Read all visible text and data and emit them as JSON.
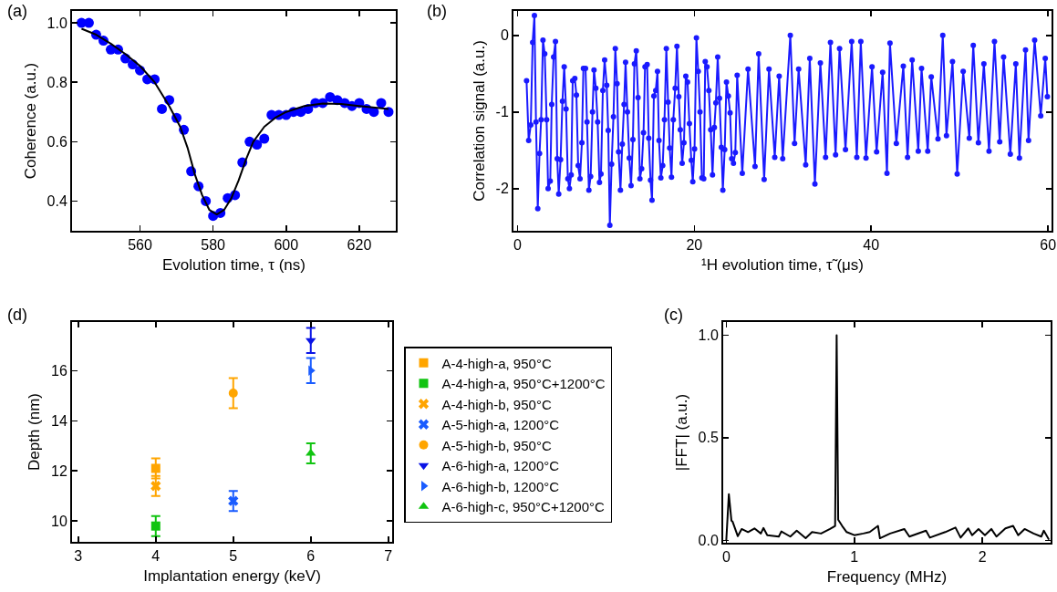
{
  "chart_data": [
    {
      "type": "scatter",
      "annotations": [
        "(a)"
      ],
      "xlabel": "Evolution time, τ (ns)",
      "ylabel": "Coherence (a.u.)",
      "xlim": [
        541.4,
        630
      ],
      "xticks": [
        560,
        580,
        600,
        620
      ],
      "ylim": [
        0.3,
        1.04
      ],
      "yticks": [
        {
          "value": 0.4,
          "label": "0.4"
        },
        {
          "value": 0.6,
          "label": "0.6"
        },
        {
          "value": 0.8,
          "label": "0.8"
        },
        {
          "value": 1.0,
          "label": "1.0"
        }
      ],
      "grid": false,
      "legend": false,
      "series": [
        {
          "marker": "circle",
          "color": "#0000ff",
          "x": [
            544,
            546,
            548,
            550,
            552,
            554,
            556,
            558,
            560,
            562,
            564,
            566,
            568,
            570,
            572,
            574,
            576,
            578,
            580,
            582,
            584,
            586,
            588,
            590,
            592,
            594,
            596,
            598,
            600,
            602,
            604,
            606,
            608,
            610,
            612,
            614,
            616,
            618,
            620,
            622,
            624,
            626,
            628
          ],
          "values": [
            1.0,
            1.0,
            0.96,
            0.94,
            0.91,
            0.91,
            0.88,
            0.86,
            0.84,
            0.81,
            0.81,
            0.71,
            0.74,
            0.68,
            0.64,
            0.5,
            0.45,
            0.4,
            0.35,
            0.36,
            0.41,
            0.42,
            0.53,
            0.6,
            0.59,
            0.61,
            0.69,
            0.69,
            0.69,
            0.7,
            0.7,
            0.71,
            0.73,
            0.73,
            0.75,
            0.74,
            0.73,
            0.72,
            0.73,
            0.71,
            0.7,
            0.73,
            0.7
          ]
        },
        {
          "type": "line",
          "marker": "none",
          "color": "#000000",
          "x": [
            544,
            548,
            552,
            556,
            560,
            564,
            568,
            571,
            573,
            575,
            577,
            579,
            581,
            583,
            585,
            587,
            589,
            591,
            594,
            597,
            600,
            605,
            610,
            615,
            620,
            625,
            628
          ],
          "values": [
            0.98,
            0.96,
            0.93,
            0.895,
            0.855,
            0.8,
            0.72,
            0.65,
            0.58,
            0.49,
            0.42,
            0.37,
            0.355,
            0.37,
            0.41,
            0.47,
            0.54,
            0.6,
            0.65,
            0.68,
            0.7,
            0.72,
            0.728,
            0.727,
            0.72,
            0.714,
            0.71
          ]
        }
      ]
    },
    {
      "type": "line",
      "annotations": [
        "(b)"
      ],
      "xlabel": "¹H evolution time, τ̃ (μs)",
      "ylabel": "Correlation signal (a.u.)",
      "xlim": [
        -0.45,
        60.4
      ],
      "xticks": [
        0,
        20,
        40,
        60
      ],
      "ylim": [
        -2.55,
        0.32
      ],
      "yticks": [
        -2,
        -1,
        0
      ],
      "grid": false,
      "legend": false,
      "marker": "circle",
      "line_style": "solid",
      "series": [
        {
          "color": "#1a1aff",
          "x": [
            1.03,
            1.27,
            1.51,
            1.72,
            1.92,
            2.1,
            2.3,
            2.5,
            2.68,
            2.89,
            3.09,
            3.3,
            3.47,
            3.71,
            3.88,
            4.09,
            4.3,
            4.5,
            4.67,
            4.88,
            5.09,
            5.29,
            5.5,
            5.7,
            5.88,
            6.08,
            6.25,
            6.49,
            6.67,
            6.87,
            7.08,
            7.29,
            7.46,
            7.7,
            7.87,
            8.08,
            8.28,
            8.49,
            8.66,
            8.87,
            9.07,
            9.28,
            9.45,
            9.66,
            9.86,
            10.1,
            10.27,
            10.45,
            10.65,
            10.86,
            11.07,
            11.27,
            11.44,
            11.65,
            11.86,
            12.06,
            12.23,
            12.44,
            12.65,
            12.85,
            13.06,
            13.23,
            13.44,
            13.64,
            13.85,
            14.05,
            14.26,
            14.43,
            14.67,
            14.85,
            15.05,
            15.22,
            15.43,
            15.64,
            15.84,
            16.01,
            16.22,
            16.43,
            16.63,
            16.84,
            17.04,
            17.22,
            17.42,
            17.63,
            17.84,
            18.04,
            18.25,
            18.42,
            18.63,
            18.83,
            19.04,
            19.24,
            19.45,
            19.66,
            19.83,
            20.03,
            20.24,
            20.45,
            20.65,
            20.86,
            21.07,
            21.24,
            21.44,
            21.65,
            21.86,
            22.06,
            22.27,
            22.44,
            22.65,
            22.85,
            23.06,
            23.23,
            23.44,
            23.64,
            23.85,
            24.05,
            24.23,
            24.43,
            24.64,
            24.85,
            25.43,
            26.08,
            26.87,
            27.28,
            27.9,
            28.45,
            29.1,
            29.6,
            30.0,
            30.86,
            31.34,
            31.8,
            32.6,
            33.06,
            33.64,
            34.26,
            34.85,
            35.4,
            35.98,
            36.43,
            37.1,
            37.8,
            38.38,
            38.83,
            39.42,
            40.1,
            40.62,
            41.3,
            41.79,
            42.13,
            42.85,
            43.64,
            44.12,
            44.64,
            45.33,
            45.7,
            46.4,
            46.8,
            47.56,
            48.1,
            48.52,
            49.2,
            49.73,
            50.41,
            51.1,
            51.55,
            52.13,
            52.75,
            53.33,
            53.95,
            54.54,
            54.98,
            55.74,
            56.36,
            56.77,
            57.46,
            57.8,
            58.49,
            59.18,
            59.69,
            59.93
          ],
          "values": [
            -0.59,
            -1.37,
            -1.17,
            -0.09,
            0.26,
            -1.13,
            -2.26,
            -1.54,
            -1.1,
            -0.06,
            -0.24,
            -1.1,
            -2.0,
            -1.9,
            -0.9,
            -0.28,
            -0.08,
            -1.61,
            -2.07,
            -1.62,
            -0.86,
            -0.41,
            -0.96,
            -1.87,
            -2.0,
            -1.82,
            -0.59,
            -0.56,
            -0.78,
            -1.7,
            -1.87,
            -1.4,
            -0.43,
            -0.43,
            -1.13,
            -2.02,
            -1.84,
            -1.0,
            -0.45,
            -0.69,
            -1.13,
            -1.92,
            -1.81,
            -0.72,
            -0.32,
            -0.65,
            -1.24,
            -2.48,
            -1.68,
            -1.06,
            -0.17,
            -0.63,
            -1.52,
            -2.02,
            -1.42,
            -0.9,
            -0.35,
            -1.0,
            -1.6,
            -1.96,
            -1.36,
            -0.37,
            -0.2,
            -0.81,
            -1.87,
            -1.74,
            -1.27,
            -0.41,
            -0.38,
            -1.34,
            -1.89,
            -2.15,
            -0.79,
            -0.72,
            -0.47,
            -1.37,
            -1.86,
            -1.7,
            -1.1,
            -0.17,
            -0.87,
            -1.47,
            -1.85,
            -1.1,
            -0.69,
            -0.14,
            -0.8,
            -1.23,
            -1.67,
            -1.4,
            -0.53,
            -0.61,
            -1.15,
            -1.63,
            -1.91,
            -1.48,
            -0.03,
            -0.47,
            -1.0,
            -1.86,
            -1.87,
            -0.34,
            -0.41,
            -0.72,
            -1.23,
            -1.82,
            -1.2,
            -0.88,
            -0.28,
            -0.82,
            -1.46,
            -2.02,
            -1.49,
            -0.61,
            -0.79,
            -1.01,
            -1.61,
            -1.67,
            -1.53,
            -0.52,
            -1.8,
            -0.44,
            -1.71,
            -0.24,
            -1.88,
            -0.44,
            -1.59,
            -0.53,
            -1.61,
            0.0,
            -1.41,
            -0.44,
            -1.69,
            -0.3,
            -1.94,
            -0.36,
            -1.59,
            -0.09,
            -1.56,
            -0.17,
            -1.49,
            -0.08,
            -1.59,
            -0.08,
            -1.6,
            -0.41,
            -1.52,
            -0.48,
            -1.8,
            -0.1,
            -1.41,
            -0.4,
            -1.59,
            -0.32,
            -1.51,
            -0.43,
            -1.51,
            -0.54,
            -1.35,
            0.0,
            -1.31,
            -0.34,
            -1.81,
            -0.47,
            -1.34,
            -0.13,
            -1.4,
            -0.37,
            -1.51,
            -0.08,
            -1.39,
            -0.28,
            -1.55,
            -0.37,
            -1.6,
            -0.19,
            -1.37,
            -0.06,
            -1.05,
            -0.3,
            -0.8
          ]
        }
      ]
    },
    {
      "type": "scatter",
      "annotations": [
        "(d)"
      ],
      "xlabel": "Implantation energy (keV)",
      "ylabel": "Depth (nm)",
      "xlim": [
        2.92,
        7.05
      ],
      "xticks": [
        3,
        4,
        5,
        6,
        7
      ],
      "ylim": [
        9.17,
        17.94
      ],
      "yticks": [
        10,
        12,
        14,
        16
      ],
      "grid": false,
      "legend": "right",
      "series": [
        {
          "name": "A-4-high-a, 950°C",
          "color": "#ffa500",
          "marker": "square",
          "x": [
            4
          ],
          "values": [
            12.1
          ],
          "errors": [
            0.4
          ]
        },
        {
          "name": "A-4-high-a, 950°C+1200°C",
          "color": "#11c411",
          "marker": "square",
          "x": [
            4
          ],
          "values": [
            9.8
          ],
          "errors": [
            0.4
          ]
        },
        {
          "name": "A-4-high-b, 950°C",
          "color": "#ffa500",
          "marker": "cross",
          "x": [
            4
          ],
          "values": [
            11.4
          ],
          "errors": [
            0.4
          ]
        },
        {
          "name": "A-5-high-a, 1200°C",
          "color": "#1a5cff",
          "marker": "cross",
          "x": [
            5
          ],
          "values": [
            10.8
          ],
          "errors": [
            0.4
          ]
        },
        {
          "name": "A-5-high-b, 950°C",
          "color": "#ffa500",
          "marker": "circle",
          "x": [
            5
          ],
          "values": [
            15.1
          ],
          "errors": [
            0.6
          ]
        },
        {
          "name": "A-6-high-a, 1200°C",
          "color": "#0a14e6",
          "marker": "triangle-down",
          "x": [
            6
          ],
          "values": [
            17.2
          ],
          "errors": [
            0.5
          ]
        },
        {
          "name": "A-6-high-b, 1200°C",
          "color": "#1a5cff",
          "marker": "triangle-right",
          "x": [
            6
          ],
          "values": [
            16.0
          ],
          "errors": [
            0.5
          ]
        },
        {
          "name": "A-6-high-c, 950°C+1200°C",
          "color": "#11c411",
          "marker": "triangle",
          "x": [
            6
          ],
          "values": [
            12.7
          ],
          "errors": [
            0.4
          ]
        }
      ]
    },
    {
      "type": "line",
      "annotations": [
        "(c)"
      ],
      "xlabel": "Frequency (MHz)",
      "ylabel": "|FFT| (a.u.)",
      "xlim": [
        -0.024,
        2.533
      ],
      "xticks": [
        0,
        1,
        2
      ],
      "ylim": [
        -0.012,
        1.064
      ],
      "yticks": [
        {
          "value": 0,
          "label": "0.0"
        },
        {
          "value": 0.5,
          "label": "0.5"
        },
        {
          "value": 1.0,
          "label": "1.0"
        }
      ],
      "grid": false,
      "legend": false,
      "marker": "none",
      "series": [
        {
          "color": "#000000",
          "x": [
            0,
            0.02,
            0.04,
            0.05,
            0.09,
            0.12,
            0.17,
            0.22,
            0.27,
            0.29,
            0.32,
            0.41,
            0.43,
            0.5,
            0.55,
            0.62,
            0.67,
            0.74,
            0.81,
            0.85,
            0.862,
            0.874,
            0.905,
            0.94,
            1.0,
            1.07,
            1.12,
            1.185,
            1.2,
            1.28,
            1.39,
            1.43,
            1.56,
            1.59,
            1.71,
            1.79,
            1.83,
            1.89,
            1.92,
            1.97,
            2.02,
            2.07,
            2.11,
            2.18,
            2.24,
            2.28,
            2.33,
            2.4,
            2.46,
            2.48,
            2.52
          ],
          "values": [
            0,
            0.225,
            0.096,
            0.09,
            0.02,
            0.055,
            0.04,
            0.058,
            0.033,
            0.06,
            0.025,
            0.018,
            0.043,
            0.018,
            0.047,
            0.01,
            0.04,
            0.033,
            0.055,
            0.07,
            1.0,
            0.1,
            0.07,
            0.04,
            0.025,
            0.033,
            0.04,
            0.07,
            0.01,
            0.033,
            0.055,
            0.018,
            0.047,
            0.013,
            0.04,
            0.062,
            0.013,
            0.058,
            0.025,
            0.055,
            0.025,
            0.055,
            0.018,
            0.058,
            0.07,
            0.025,
            0.055,
            0.033,
            0.018,
            0.047,
            0.003
          ]
        }
      ]
    }
  ]
}
